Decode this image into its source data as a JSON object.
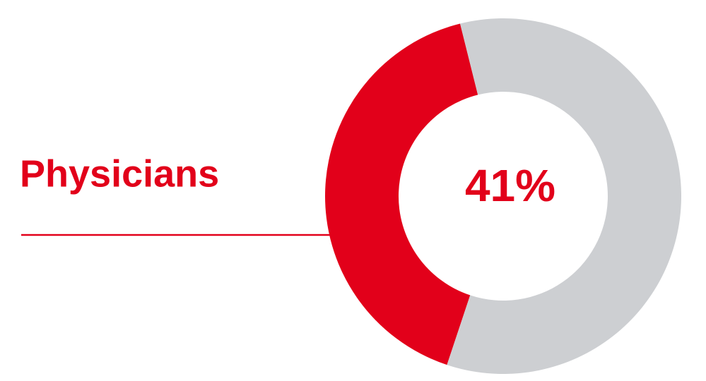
{
  "chart_data": {
    "type": "donut",
    "categories": [
      "Physicians",
      null
    ],
    "values": [
      41,
      59
    ],
    "value_labels": [
      "41%",
      null
    ],
    "colors": [
      "#e2001a",
      "#cdcfd2"
    ]
  }
}
